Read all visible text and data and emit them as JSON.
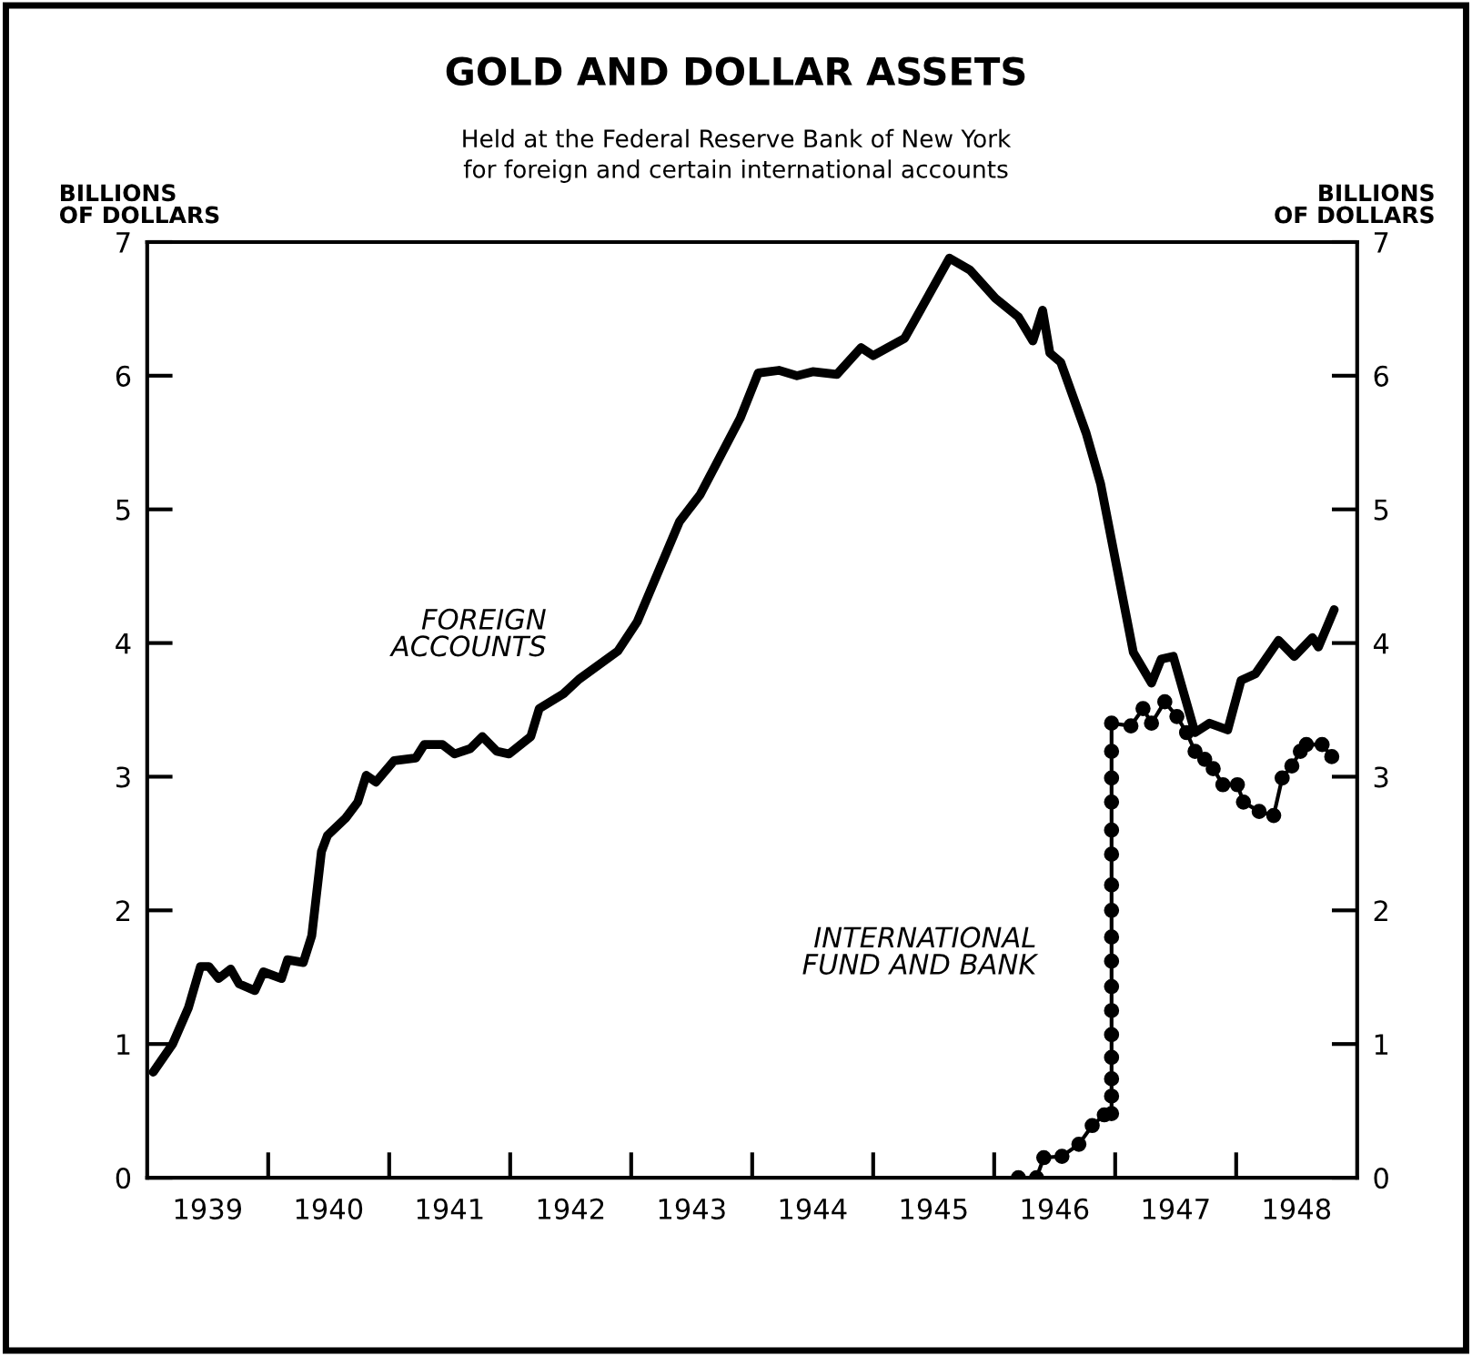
{
  "chart_data": {
    "type": "line",
    "title": "GOLD AND DOLLAR ASSETS",
    "subtitle": "Held at the Federal Reserve Bank of New York\nfor foreign and certain international accounts",
    "ylabel": "BILLIONS\nOF DOLLARS",
    "y2label": "BILLIONS\nOF DOLLARS",
    "xlim": [
      1939,
      1949
    ],
    "xticks": [
      {
        "value": 1939.5,
        "label": "1939"
      },
      {
        "value": 1940,
        "label": null
      },
      {
        "value": 1940.5,
        "label": "1940"
      },
      {
        "value": 1941,
        "label": null
      },
      {
        "value": 1941.5,
        "label": "1941"
      },
      {
        "value": 1942,
        "label": null
      },
      {
        "value": 1942.5,
        "label": "1942"
      },
      {
        "value": 1943,
        "label": null
      },
      {
        "value": 1943.5,
        "label": "1943"
      },
      {
        "value": 1944,
        "label": null
      },
      {
        "value": 1944.5,
        "label": "1944"
      },
      {
        "value": 1945,
        "label": null
      },
      {
        "value": 1945.5,
        "label": "1945"
      },
      {
        "value": 1946,
        "label": null
      },
      {
        "value": 1946.5,
        "label": "1946"
      },
      {
        "value": 1947,
        "label": null
      },
      {
        "value": 1947.5,
        "label": "1947"
      },
      {
        "value": 1948,
        "label": null
      },
      {
        "value": 1948.5,
        "label": "1948"
      }
    ],
    "ylim": [
      0,
      7
    ],
    "yticks": [
      0,
      1,
      2,
      3,
      4,
      5,
      6,
      7
    ],
    "y2lim": [
      0,
      7
    ],
    "y2ticks": [
      0,
      1,
      2,
      3,
      4,
      5,
      6,
      7
    ],
    "grid": false,
    "legend": false,
    "series": [
      {
        "name": "FOREIGN\nACCOUNTS",
        "color": "#000000",
        "marker": "none",
        "line_style": "solid",
        "x": [
          1939.05,
          1939.21,
          1939.34,
          1939.44,
          1939.51,
          1939.59,
          1939.69,
          1939.76,
          1939.89,
          1939.96,
          1940.11,
          1940.16,
          1940.29,
          1940.36,
          1940.44,
          1940.49,
          1940.64,
          1940.74,
          1940.81,
          1940.89,
          1941.04,
          1941.22,
          1941.29,
          1941.44,
          1941.54,
          1941.67,
          1941.77,
          1941.89,
          1941.99,
          1942.17,
          1942.24,
          1942.44,
          1942.57,
          1942.89,
          1943.05,
          1943.4,
          1943.57,
          1943.9,
          1944.05,
          1944.22,
          1944.37,
          1944.5,
          1944.7,
          1944.9,
          1945.0,
          1945.26,
          1945.63,
          1945.8,
          1946.01,
          1946.2,
          1946.32,
          1946.4,
          1946.46,
          1946.55,
          1946.76,
          1946.88,
          1947.15,
          1947.3,
          1947.38,
          1947.48,
          1947.66,
          1947.78,
          1947.93,
          1948.04,
          1948.16,
          1948.35,
          1948.48,
          1948.63,
          1948.68,
          1948.81
        ],
        "values": [
          0.79,
          1.0,
          1.27,
          1.58,
          1.58,
          1.49,
          1.56,
          1.45,
          1.4,
          1.54,
          1.49,
          1.63,
          1.61,
          1.81,
          2.44,
          2.56,
          2.69,
          2.81,
          3.01,
          2.96,
          3.12,
          3.14,
          3.24,
          3.24,
          3.17,
          3.21,
          3.3,
          3.19,
          3.17,
          3.3,
          3.51,
          3.62,
          3.73,
          3.94,
          4.16,
          4.91,
          5.11,
          5.68,
          6.02,
          6.04,
          6.0,
          6.03,
          6.01,
          6.21,
          6.15,
          6.28,
          6.88,
          6.79,
          6.58,
          6.44,
          6.26,
          6.49,
          6.17,
          6.1,
          5.57,
          5.19,
          3.93,
          3.7,
          3.88,
          3.9,
          3.33,
          3.4,
          3.35,
          3.72,
          3.77,
          4.02,
          3.9,
          4.04,
          3.97,
          4.25
        ]
      },
      {
        "name": "INTERNATIONAL\nFUND AND BANK",
        "color": "#000000",
        "marker": "circle",
        "line_style": "solid",
        "x": [
          1946.2,
          1946.35,
          1946.41,
          1946.56,
          1946.7,
          1946.81,
          1946.91,
          1946.97,
          1946.97,
          1946.97,
          1946.97,
          1946.97,
          1946.97,
          1946.97,
          1946.97,
          1946.97,
          1946.97,
          1946.97,
          1946.97,
          1946.97,
          1946.97,
          1946.97,
          1946.97,
          1946.97,
          1947.13,
          1947.23,
          1947.3,
          1947.41,
          1947.51,
          1947.59,
          1947.66,
          1947.74,
          1947.81,
          1947.89,
          1948.01,
          1948.06,
          1948.19,
          1948.31,
          1948.38,
          1948.46,
          1948.53,
          1948.58,
          1948.71,
          1948.79
        ],
        "values": [
          0,
          0,
          0.15,
          0.16,
          0.25,
          0.39,
          0.47,
          0.48,
          0.61,
          0.74,
          0.9,
          1.07,
          1.25,
          1.43,
          1.62,
          1.8,
          2.0,
          2.19,
          2.42,
          2.6,
          2.81,
          2.99,
          3.19,
          3.4,
          3.38,
          3.51,
          3.4,
          3.56,
          3.45,
          3.33,
          3.19,
          3.13,
          3.06,
          2.94,
          2.94,
          2.81,
          2.74,
          2.71,
          2.99,
          3.08,
          3.19,
          3.24,
          3.24,
          3.15
        ]
      }
    ]
  }
}
